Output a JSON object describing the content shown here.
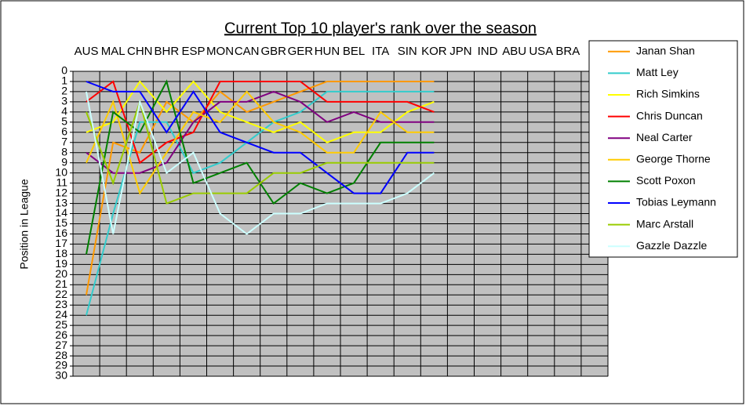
{
  "chart_data": {
    "type": "line",
    "title": "Current Top 10 player's rank over the season",
    "y_label": "Position in League",
    "y_reversed": true,
    "categories": [
      "AUS",
      "MAL",
      "CHN",
      "BHR",
      "ESP",
      "MON",
      "CAN",
      "GBR",
      "GER",
      "HUN",
      "BEL",
      "ITA",
      "SIN",
      "KOR",
      "JPN",
      "IND",
      "ABU",
      "USA",
      "BRA",
      null
    ],
    "ylim": [
      0,
      30
    ],
    "yticks": [
      0,
      1,
      2,
      3,
      4,
      5,
      6,
      7,
      8,
      9,
      10,
      11,
      12,
      13,
      14,
      15,
      16,
      17,
      18,
      19,
      20,
      21,
      22,
      23,
      24,
      25,
      26,
      27,
      28,
      29,
      30
    ],
    "grid": true,
    "legend": "right",
    "series": [
      {
        "name": "Janan Shan",
        "color": "#ff9900",
        "values": [
          22,
          7,
          8,
          3,
          5,
          2,
          4,
          3,
          2,
          1,
          1,
          1,
          1,
          1,
          null,
          null,
          null,
          null,
          null,
          null
        ]
      },
      {
        "name": "Matt Ley",
        "color": "#33cccc",
        "values": [
          24,
          14,
          5,
          5,
          10,
          9,
          7,
          5,
          4,
          2,
          2,
          2,
          2,
          2,
          null,
          null,
          null,
          null,
          null,
          null
        ]
      },
      {
        "name": "Rich Simkins",
        "color": "#ffff00",
        "values": [
          6,
          5,
          1,
          4,
          1,
          4,
          5,
          6,
          5,
          7,
          6,
          6,
          4,
          3,
          null,
          null,
          null,
          null,
          null,
          null
        ]
      },
      {
        "name": "Chris Duncan",
        "color": "#ff0000",
        "values": [
          3,
          1,
          9,
          7,
          6,
          1,
          1,
          1,
          1,
          3,
          3,
          3,
          3,
          4,
          null,
          null,
          null,
          null,
          null,
          null
        ]
      },
      {
        "name": "Neal Carter",
        "color": "#800080",
        "values": [
          8,
          10,
          10,
          9,
          5,
          3,
          3,
          2,
          3,
          5,
          4,
          5,
          5,
          5,
          null,
          null,
          null,
          null,
          null,
          null
        ]
      },
      {
        "name": "George Thorne",
        "color": "#ffcc00",
        "values": [
          9,
          3,
          12,
          8,
          4,
          5,
          2,
          5,
          6,
          8,
          8,
          4,
          6,
          6,
          null,
          null,
          null,
          null,
          null,
          null
        ]
      },
      {
        "name": "Scott Poxon",
        "color": "#008000",
        "values": [
          18,
          4,
          6,
          1,
          11,
          10,
          9,
          13,
          11,
          12,
          11,
          7,
          7,
          7,
          null,
          null,
          null,
          null,
          null,
          null
        ]
      },
      {
        "name": "Tobias Leymann",
        "color": "#0000ff",
        "values": [
          1,
          2,
          2,
          6,
          2,
          6,
          7,
          8,
          8,
          10,
          12,
          12,
          8,
          8,
          null,
          null,
          null,
          null,
          null,
          null
        ]
      },
      {
        "name": "Marc Arstall",
        "color": "#99cc00",
        "values": [
          4,
          11,
          3,
          13,
          12,
          12,
          12,
          10,
          10,
          9,
          9,
          9,
          9,
          9,
          null,
          null,
          null,
          null,
          null,
          null
        ]
      },
      {
        "name": "Gazzle Dazzle",
        "color": "#ccffff",
        "values": [
          2,
          16,
          3,
          10,
          8,
          14,
          16,
          14,
          14,
          13,
          13,
          13,
          12,
          10,
          null,
          null,
          null,
          null,
          null,
          null
        ]
      }
    ]
  }
}
